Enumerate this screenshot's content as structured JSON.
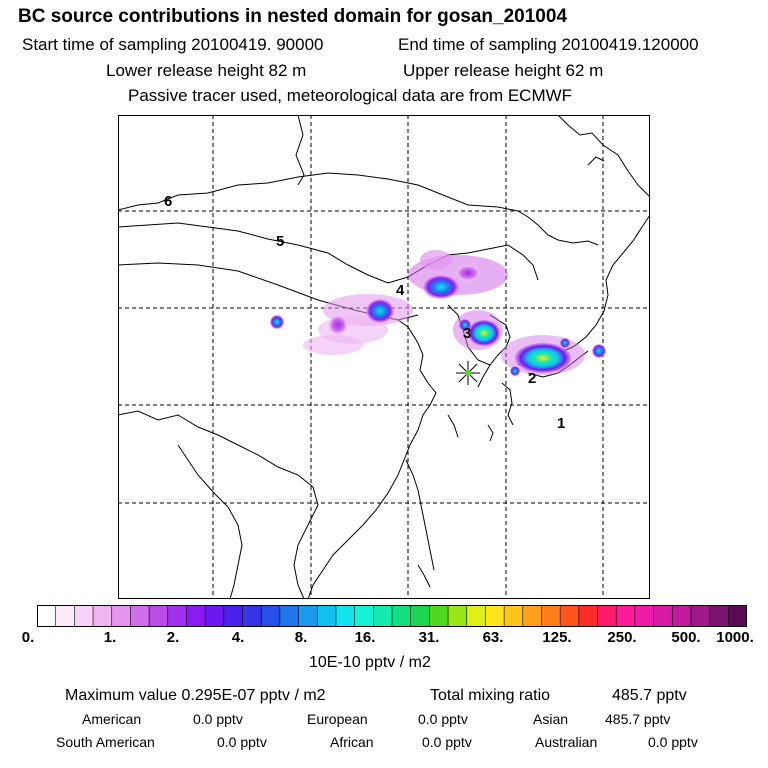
{
  "header": {
    "title": "BC  source contributions in nested domain for gosan_201004",
    "start_time": "Start time of sampling 20100419. 90000",
    "end_time": "End time of sampling 20100419.120000",
    "lower_height": "Lower release height   82 m",
    "upper_height": "Upper release height   62 m",
    "tracer_note": "Passive tracer used, meteorological data are from ECMWF"
  },
  "map": {
    "region_labels": [
      "1",
      "2",
      "3",
      "4",
      "5",
      "6"
    ],
    "site_marker": "star-marker"
  },
  "colorbar": {
    "ticks": [
      "0.",
      "1.",
      "2.",
      "4.",
      "8.",
      "16.",
      "31.",
      "63.",
      "125.",
      "250.",
      "500.",
      "1000."
    ],
    "unit": "10E-10 pptv / m2",
    "colors": [
      "#ffffff",
      "#fbe9fb",
      "#f6d2f7",
      "#efb5f3",
      "#e496ef",
      "#d16ee9",
      "#bb4ce8",
      "#a030ee",
      "#8a1cf2",
      "#6a18ef",
      "#4b22ea",
      "#3535e6",
      "#2750ea",
      "#2075ec",
      "#1a9bee",
      "#12c1f0",
      "#10e5ef",
      "#14f3d6",
      "#12eaae",
      "#10e080",
      "#1ad64e",
      "#4fd81e",
      "#98e613",
      "#dff016",
      "#ffe51a",
      "#ffc31a",
      "#ffa11a",
      "#ff7d1a",
      "#ff551a",
      "#ff2a2a",
      "#ff1a6a",
      "#ff1a9a",
      "#f01aa8",
      "#d81aa5",
      "#bf1a9a",
      "#9e1a88",
      "#7a1470",
      "#5a0a54"
    ]
  },
  "footer": {
    "max_value": "Maximum value  0.295E-07 pptv / m2",
    "total_label": "Total mixing ratio",
    "total_value": "485.7 pptv",
    "american_label": "American",
    "american_value": "0.0 pptv",
    "european_label": "European",
    "european_value": "0.0 pptv",
    "asian_label": "Asian",
    "asian_value": "485.7 pptv",
    "south_american_label": "South American",
    "south_american_value": "0.0 pptv",
    "african_label": "African",
    "african_value": "0.0 pptv",
    "australian_label": "Australian",
    "australian_value": "0.0 pptv"
  }
}
